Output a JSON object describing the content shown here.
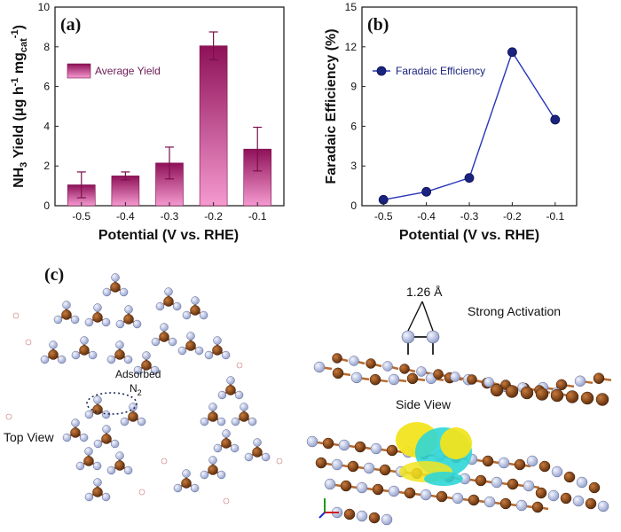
{
  "chart_data": [
    {
      "panel": "(a)",
      "type": "bar",
      "categories": [
        "-0.5",
        "-0.4",
        "-0.3",
        "-0.2",
        "-0.1"
      ],
      "series": [
        {
          "name": "Average Yield",
          "values": [
            1.05,
            1.5,
            2.15,
            8.05,
            2.85
          ],
          "errors": [
            0.65,
            0.2,
            0.8,
            0.7,
            1.1
          ]
        }
      ],
      "xlabel": "Potential (V vs. RHE)",
      "ylabel": "NH3 Yield (μg h-1 mgcat-1)",
      "ylim": [
        0,
        10
      ],
      "yticks": [
        0,
        2,
        4,
        6,
        8,
        10
      ],
      "bar_color": "#b0186a",
      "bar_color_light": "#f28ec8",
      "legend": "upper-left"
    },
    {
      "panel": "(b)",
      "type": "line",
      "x": [
        -0.5,
        -0.4,
        -0.3,
        -0.2,
        -0.1
      ],
      "categories": [
        "-0.5",
        "-0.4",
        "-0.3",
        "-0.2",
        "-0.1"
      ],
      "series": [
        {
          "name": "Faradaic Efficiency",
          "values": [
            0.45,
            1.05,
            2.1,
            11.6,
            6.5
          ]
        }
      ],
      "xlabel": "Potential (V vs. RHE)",
      "ylabel": "Faradaic Efficiency (%)",
      "ylim": [
        0,
        15
      ],
      "yticks": [
        0,
        3,
        6,
        9,
        12,
        15
      ],
      "line_color": "#2a36b8",
      "marker_color": "#1a237e",
      "legend": "upper-left"
    }
  ],
  "panel_c": {
    "label": "(c)",
    "top_view": "Top View",
    "adsorbed": "Adsorbed",
    "n2": "N",
    "n2_sub": "2",
    "bond_length": "1.26 Å",
    "strong_activation": "Strong Activation",
    "side_view": "Side View",
    "colors": {
      "boron": "#8b4513",
      "nitrogen": "#c3cce8",
      "hydrogen": "#ffffff",
      "charge_yellow": "#f2e41e",
      "charge_cyan": "#2fd6d6"
    }
  }
}
